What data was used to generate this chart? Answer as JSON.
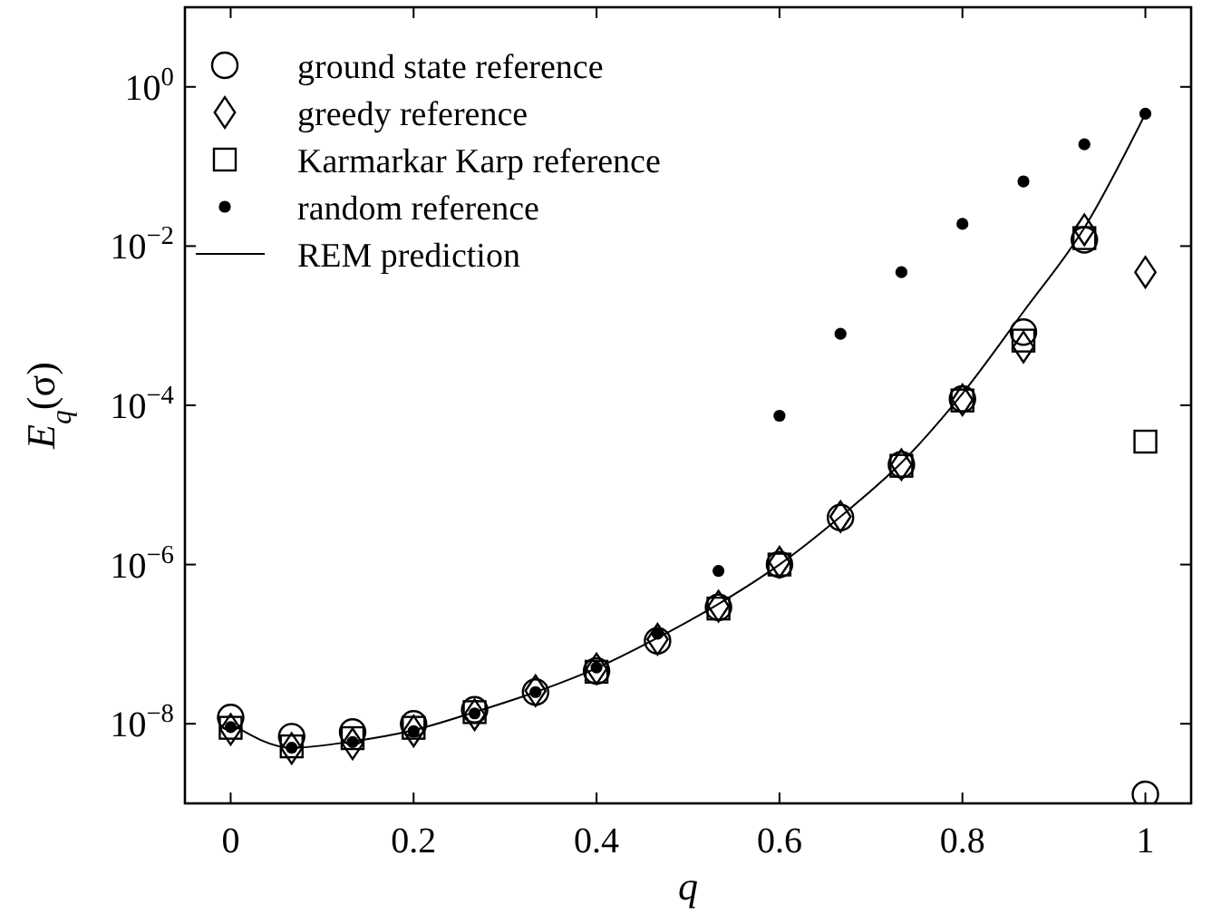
{
  "chart_data": {
    "type": "scatter",
    "xlabel": "q",
    "ylabel": "E$_{q}$(σ)",
    "log": "y",
    "legend": "top left",
    "grid": false,
    "x": [
      0,
      0.0667,
      0.1333,
      0.2,
      0.2667,
      0.3333,
      0.4,
      0.4667,
      0.5333,
      0.6,
      0.6667,
      0.7333,
      0.8,
      0.8667,
      0.9333,
      1
    ],
    "xlim": [
      -0.05,
      1.05
    ],
    "xticks": [
      0,
      0.2,
      0.4,
      0.6,
      0.8,
      1
    ],
    "ylim": [
      1e-09,
      10
    ],
    "yticks": [
      {
        "value": 1e-08,
        "label": "10$^{−8}$"
      },
      {
        "value": 1e-06,
        "label": "10$^{−6}$"
      },
      {
        "value": 0.0001,
        "label": "10$^{−4}$"
      },
      {
        "value": 0.01,
        "label": "10$^{−2}$"
      },
      {
        "value": 1,
        "label": "10$^{0}$"
      }
    ],
    "series": [
      {
        "name": "ground state reference",
        "color": "#000000",
        "marker": "circle",
        "values": [
          1.2e-08,
          6.9e-09,
          7.9e-09,
          1e-08,
          1.5e-08,
          2.5e-08,
          4.6e-08,
          1.1e-07,
          2.9e-07,
          1e-06,
          3.9e-06,
          1.8e-05,
          0.00012,
          0.00083,
          0.012,
          1.3e-09
        ]
      },
      {
        "name": "greedy reference",
        "color": "#000000",
        "marker": "diamond",
        "values": [
          8.5e-09,
          4.9e-09,
          5.6e-09,
          8.1e-09,
          1.3e-08,
          2.6e-08,
          4.9e-08,
          1.15e-07,
          3e-07,
          1.07e-06,
          4e-06,
          1.8e-05,
          0.000117,
          0.00054,
          0.016,
          0.0047
        ]
      },
      {
        "name": "Karmarkar Karp reference",
        "color": "#000000",
        "marker": "square",
        "values": [
          8.9e-09,
          5.2e-09,
          6.6e-09,
          8.9e-09,
          1.4e-08,
          null,
          4.5e-08,
          null,
          2.8e-07,
          1e-06,
          null,
          1.74e-05,
          0.000115,
          0.00065,
          0.0126,
          3.5e-05
        ]
      },
      {
        "name": "random reference",
        "color": "#000000",
        "marker": "dot",
        "values": [
          9.1e-09,
          5e-09,
          5.9e-09,
          8.1e-09,
          1.35e-08,
          2.5e-08,
          5.1e-08,
          1.35e-07,
          8.3e-07,
          7.4e-05,
          0.00079,
          0.0047,
          0.019,
          0.065,
          0.19,
          0.46
        ]
      },
      {
        "name": "REM prediction",
        "type": "line",
        "color": "#000000",
        "marker": "none",
        "line_style": "solid",
        "values": [
          1e-08,
          5e-09,
          6e-09,
          8.3e-09,
          1.4e-08,
          2.5e-08,
          5e-08,
          1.2e-07,
          3.2e-07,
          1e-06,
          4e-06,
          1.9e-05,
          0.00014,
          0.0015,
          0.017,
          0.46
        ]
      }
    ]
  }
}
